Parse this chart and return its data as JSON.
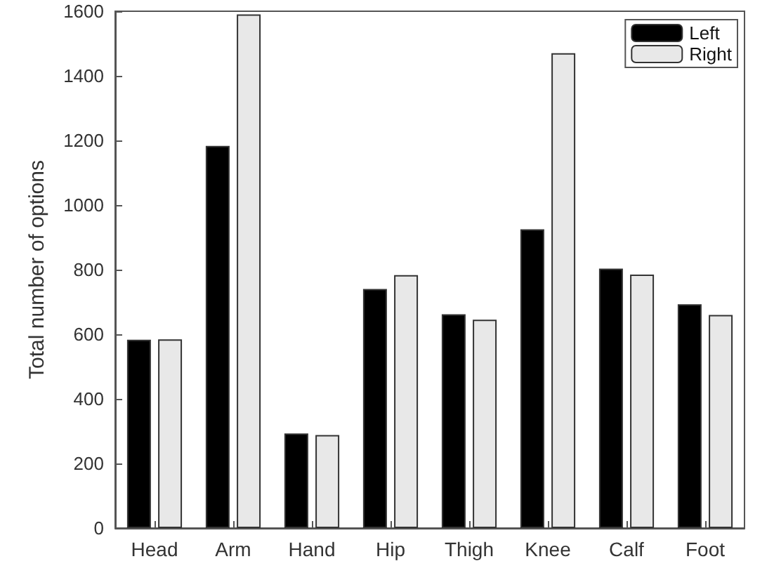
{
  "chart_data": {
    "type": "bar",
    "ylabel": "Total number of options",
    "categories": [
      "Head",
      "Arm",
      "Hand",
      "Hip",
      "Thigh",
      "Knee",
      "Calf",
      "Foot"
    ],
    "series": [
      {
        "name": "Left",
        "color": "#000000",
        "values": [
          583,
          1183,
          293,
          740,
          662,
          925,
          803,
          693
        ]
      },
      {
        "name": "Right",
        "color": "#e8e8e8",
        "values": [
          584,
          1590,
          288,
          783,
          645,
          1470,
          785,
          660
        ]
      }
    ],
    "ylim": [
      0,
      1600
    ],
    "yticks": [
      0,
      200,
      400,
      600,
      800,
      1000,
      1200,
      1400,
      1600
    ],
    "grid": false,
    "legend": "top right"
  }
}
